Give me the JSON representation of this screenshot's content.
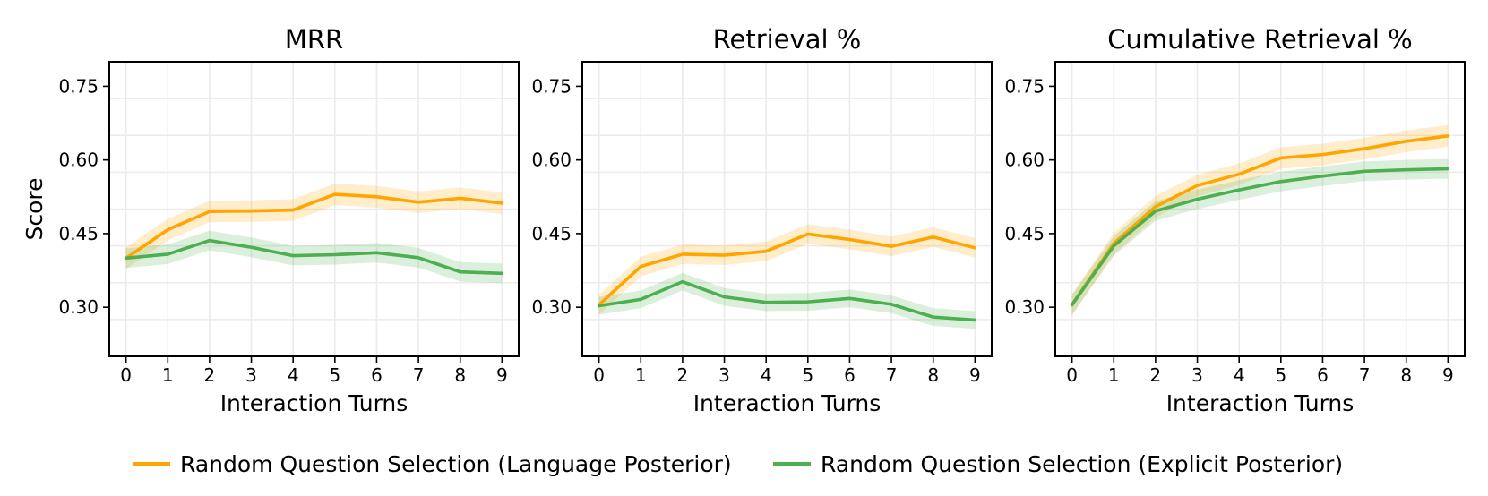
{
  "legend": {
    "placement": "bottom-center",
    "entries": [
      "Random Question Selection (Language Posterior)",
      "Random Question Selection (Explicit Posterior)"
    ]
  },
  "colors": {
    "language": "#FFA500",
    "explicit": "#4CAF50",
    "grid": "#ebebeb",
    "axis": "#000000"
  },
  "chart_data": [
    {
      "type": "line",
      "title": "MRR",
      "xlabel": "Interaction Turns",
      "ylabel": "Score",
      "x": [
        0,
        1,
        2,
        3,
        4,
        5,
        6,
        7,
        8,
        9
      ],
      "xlim": [
        -0.4,
        9.4
      ],
      "ylim": [
        0.2,
        0.8
      ],
      "yticks": [
        0.3,
        0.45,
        0.6,
        0.75
      ],
      "ytick_labels": [
        "0.30",
        "0.45",
        "0.60",
        "0.75"
      ],
      "grid": true,
      "series": [
        {
          "name": "Random Question Selection (Language Posterior)",
          "values": [
            0.4,
            0.458,
            0.495,
            0.496,
            0.498,
            0.53,
            0.525,
            0.514,
            0.522,
            0.512
          ],
          "band": 0.022
        },
        {
          "name": "Random Question Selection (Explicit Posterior)",
          "values": [
            0.4,
            0.408,
            0.436,
            0.422,
            0.405,
            0.407,
            0.411,
            0.401,
            0.372,
            0.369
          ],
          "band": 0.02
        }
      ]
    },
    {
      "type": "line",
      "title": "Retrieval %",
      "xlabel": "Interaction Turns",
      "ylabel": "",
      "x": [
        0,
        1,
        2,
        3,
        4,
        5,
        6,
        7,
        8,
        9
      ],
      "xlim": [
        -0.4,
        9.4
      ],
      "ylim": [
        0.2,
        0.8
      ],
      "yticks": [
        0.3,
        0.45,
        0.6,
        0.75
      ],
      "ytick_labels": [
        "0.30",
        "0.45",
        "0.60",
        "0.75"
      ],
      "grid": true,
      "series": [
        {
          "name": "Random Question Selection (Language Posterior)",
          "values": [
            0.305,
            0.383,
            0.408,
            0.406,
            0.414,
            0.449,
            0.438,
            0.424,
            0.443,
            0.421
          ],
          "band": 0.02
        },
        {
          "name": "Random Question Selection (Explicit Posterior)",
          "values": [
            0.303,
            0.316,
            0.352,
            0.321,
            0.31,
            0.311,
            0.318,
            0.306,
            0.28,
            0.274
          ],
          "band": 0.018
        }
      ]
    },
    {
      "type": "line",
      "title": "Cumulative Retrieval %",
      "xlabel": "Interaction Turns",
      "ylabel": "",
      "x": [
        0,
        1,
        2,
        3,
        4,
        5,
        6,
        7,
        8,
        9
      ],
      "xlim": [
        -0.4,
        9.4
      ],
      "ylim": [
        0.2,
        0.8
      ],
      "yticks": [
        0.3,
        0.45,
        0.6,
        0.75
      ],
      "ytick_labels": [
        "0.30",
        "0.45",
        "0.60",
        "0.75"
      ],
      "grid": true,
      "series": [
        {
          "name": "Random Question Selection (Language Posterior)",
          "values": [
            0.305,
            0.43,
            0.505,
            0.548,
            0.571,
            0.604,
            0.611,
            0.623,
            0.638,
            0.649
          ],
          "band": 0.022
        },
        {
          "name": "Random Question Selection (Explicit Posterior)",
          "values": [
            0.305,
            0.425,
            0.496,
            0.52,
            0.539,
            0.556,
            0.567,
            0.577,
            0.58,
            0.582
          ],
          "band": 0.02
        }
      ]
    }
  ]
}
